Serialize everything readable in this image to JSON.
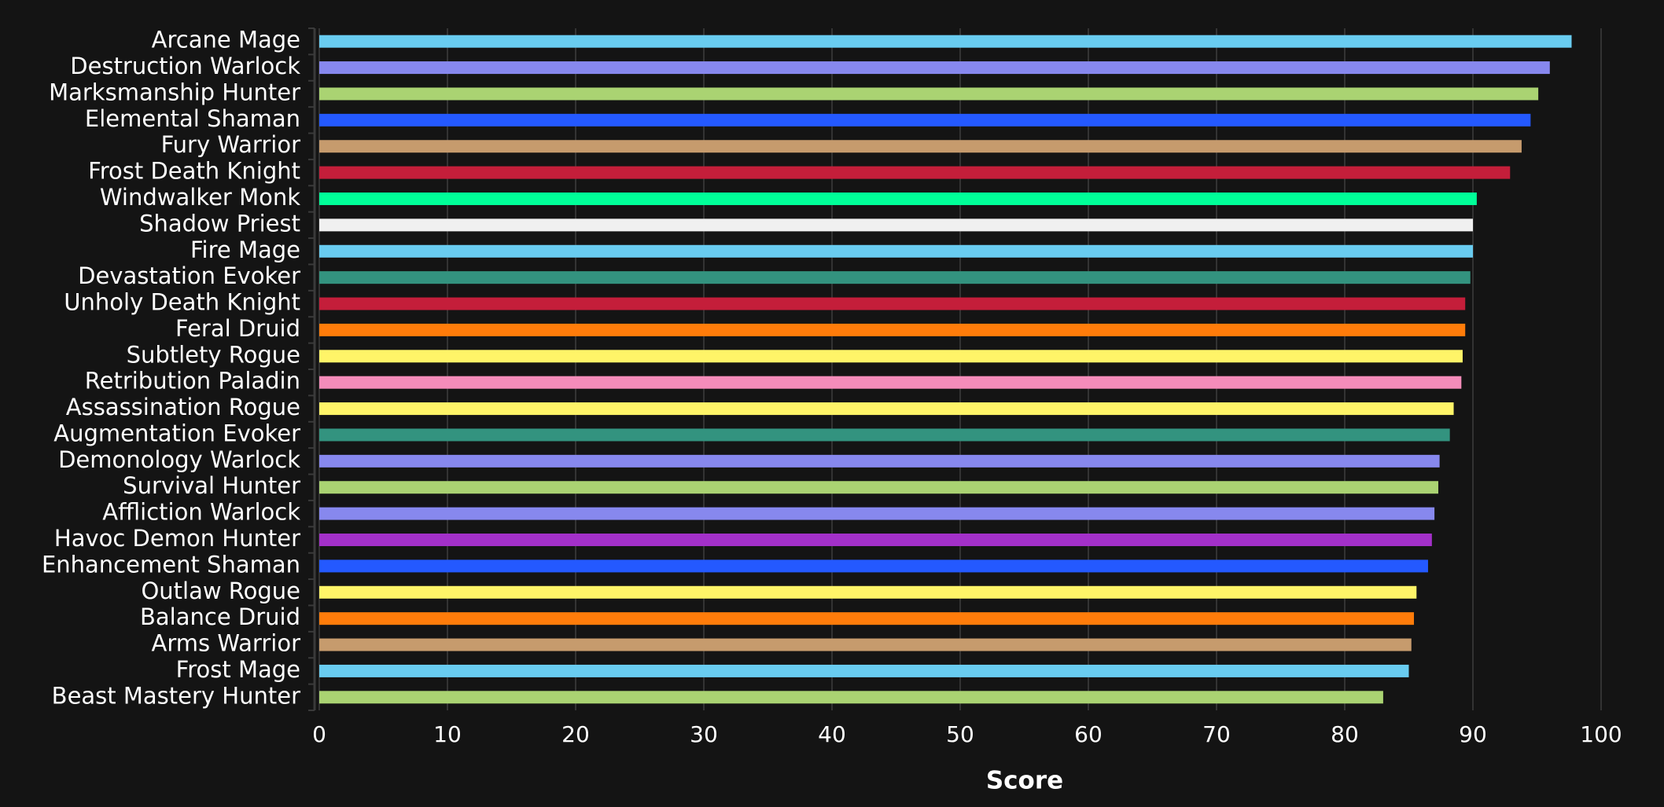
{
  "chart_data": {
    "type": "bar",
    "orientation": "horizontal",
    "x_label": "Score",
    "categories": [
      "Arcane Mage",
      "Destruction Warlock",
      "Marksmanship Hunter",
      "Elemental Shaman",
      "Fury Warrior",
      "Frost Death Knight",
      "Windwalker Monk",
      "Shadow Priest",
      "Fire Mage",
      "Devastation Evoker",
      "Unholy Death Knight",
      "Feral Druid",
      "Subtlety Rogue",
      "Retribution Paladin",
      "Assassination Rogue",
      "Augmentation Evoker",
      "Demonology Warlock",
      "Survival Hunter",
      "Affliction Warlock",
      "Havoc Demon Hunter",
      "Enhancement Shaman",
      "Outlaw Rogue",
      "Balance Druid",
      "Arms Warrior",
      "Frost Mage",
      "Beast Mastery Hunter"
    ],
    "values": [
      97.7,
      96.0,
      95.1,
      94.5,
      93.8,
      92.9,
      90.3,
      90.0,
      90.0,
      89.8,
      89.4,
      89.4,
      89.2,
      89.1,
      88.5,
      88.2,
      87.4,
      87.3,
      87.0,
      86.8,
      86.5,
      85.6,
      85.4,
      85.2,
      85.0,
      83.0
    ],
    "colors": [
      "#69ccf0",
      "#8788ee",
      "#aad372",
      "#2459ff",
      "#c69b6d",
      "#c41e3a",
      "#00ff98",
      "#f0f0f0",
      "#69ccf0",
      "#33937f",
      "#c41e3a",
      "#ff7c0a",
      "#fff468",
      "#f48cba",
      "#fff468",
      "#33937f",
      "#8788ee",
      "#aad372",
      "#8788ee",
      "#a330c9",
      "#2459ff",
      "#fff468",
      "#ff7c0a",
      "#c69b6d",
      "#69ccf0",
      "#aad372"
    ],
    "xlim": [
      0,
      100
    ],
    "xticks": [
      0,
      10,
      20,
      30,
      40,
      50,
      60,
      70,
      80,
      90,
      100
    ],
    "grid": true
  }
}
